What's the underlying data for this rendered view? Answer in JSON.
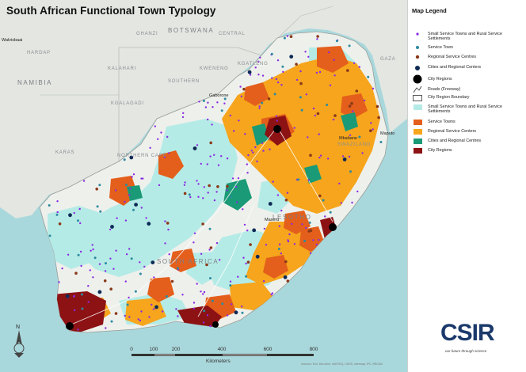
{
  "map": {
    "title": "South African Functional Town Typology",
    "colors": {
      "ocean": "#a9d8dc",
      "land": "#e3e6e1",
      "sa_land": "#eef0ec",
      "small_service_towns": "#b5ebe6",
      "service_towns": "#e45f1b",
      "regional_service_centres": "#f6a51c",
      "cities_regional_centres": "#1a9a76",
      "city_regions": "#8c1214",
      "dot_purple": "#8a2be2",
      "dot_teal": "#2c8aa0",
      "dot_brown": "#8a3a1a",
      "dot_navy": "#0d2a55",
      "dot_black": "#000000"
    },
    "place_labels": {
      "namibia": "NAMIBIA",
      "botswana": "BOTSWANA",
      "lesotho": "LESOTHO",
      "south_africa": "SOUTH AFRICA",
      "swaziland": "SWAZILAND",
      "gaza": "GAZA",
      "ghanzi": "GHANZI",
      "central": "CENTRAL",
      "kalahari": "KALAHARI",
      "northern_cape": "NORTHERN CAPE",
      "gaborone": "Gaborone",
      "maseru": "Maseru",
      "mbabane": "Mbabane",
      "maputo": "Maputo",
      "walvisbaai": "Walvisbaai",
      "hardap": "HARDAP",
      "karas": "KARAS",
      "kgalagadi": "KGALAGADI",
      "southern": "SOUTHERN",
      "kweneng": "KWENENG",
      "kgatleng": "KGATLENG"
    }
  },
  "legend": {
    "title": "Map Legend",
    "items": [
      {
        "label": "Small Service Towns and Rural Service Settlements",
        "symbol": "purple-dot-icon"
      },
      {
        "label": "Service Town",
        "symbol": "teal-dot-icon"
      },
      {
        "label": "Regional Service Centres",
        "symbol": "brown-dot-icon"
      },
      {
        "label": "Cities and Regional Centers",
        "symbol": "navy-dot-icon"
      },
      {
        "label": "City Regions",
        "symbol": "black-dot-icon"
      },
      {
        "label": "Roads (Freeway)",
        "symbol": "road-line-icon"
      },
      {
        "label": "City Region Boundary",
        "symbol": "boundary-outline-icon"
      },
      {
        "label": "Small Service Towns and Rural Service Settlements",
        "symbol": "cyan-swatch"
      },
      {
        "label": "Service Towns",
        "symbol": "orange-swatch"
      },
      {
        "label": "Regional Service Centers",
        "symbol": "amber-swatch"
      },
      {
        "label": "Cities and Regional Centres",
        "symbol": "green-swatch"
      },
      {
        "label": "City Regions",
        "symbol": "maroon-swatch"
      }
    ]
  },
  "scale_bar": {
    "ticks": [
      "0",
      "100",
      "200",
      "400",
      "600",
      "800"
    ],
    "unit": "Kilometers"
  },
  "north_arrow": {
    "label": "N"
  },
  "logo": {
    "name": "CSIR",
    "tagline": "our future through science"
  },
  "credits": "Sources: Esri, DeLorme, NAVTEQ, USGS, Intermap, iPC, NRCAN"
}
